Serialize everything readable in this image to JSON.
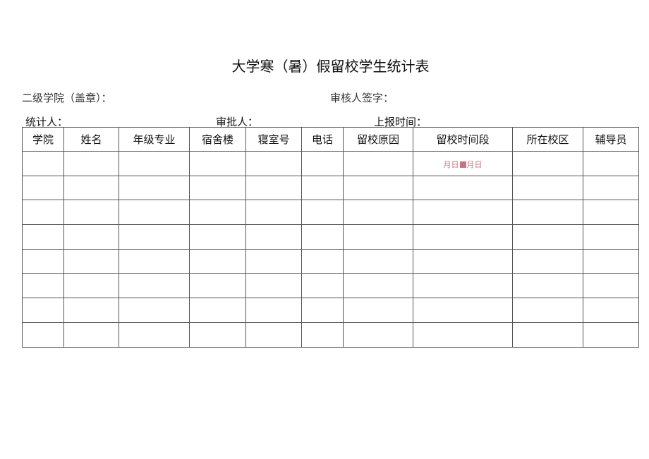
{
  "title": "大学寒（暑）假留校学生统计表",
  "fields": {
    "college_seal": "二级学院（盖章）：",
    "reviewer_sign": "审核人签字：",
    "statistician": "统计人：",
    "approver": "审批人：",
    "report_time": "上报时间："
  },
  "table": {
    "headers": [
      "学院",
      "姓名",
      "年级专业",
      "宿舍楼",
      "寝室号",
      "电话",
      "留校原因",
      "留校时间段",
      "所在校区",
      "辅导员"
    ],
    "date_range_placeholder": {
      "start": "月日",
      "end": "月日"
    },
    "row_count": 8
  },
  "colors": {
    "placeholder": "#c9757f",
    "border": "#555555"
  }
}
